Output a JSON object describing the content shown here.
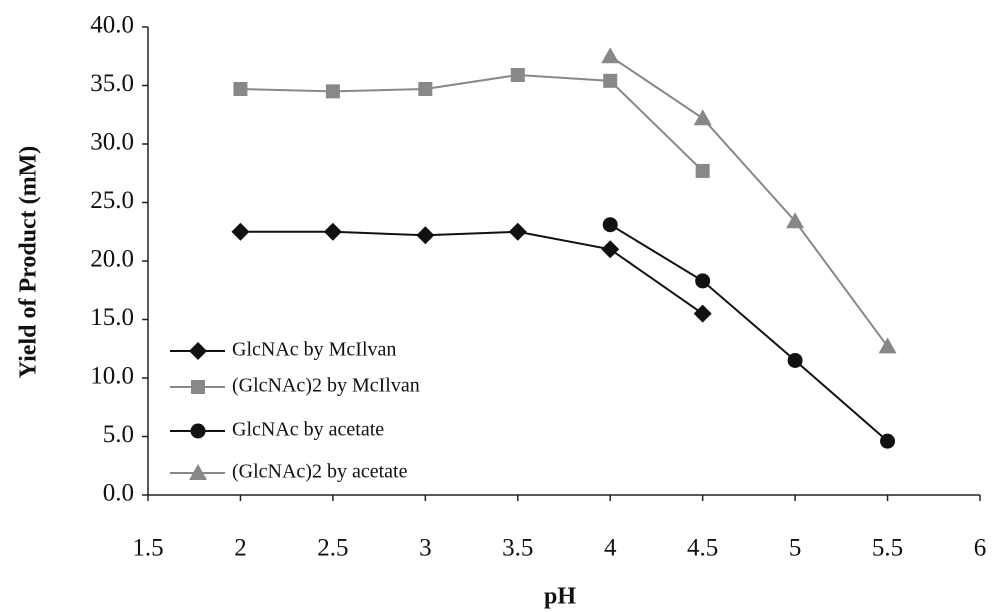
{
  "chart_data": {
    "type": "line",
    "x_label": "pH",
    "y_label": "Yield of Product (mM)",
    "xlim": [
      1.5,
      6
    ],
    "xticks": [
      1.5,
      2,
      2.5,
      3,
      3.5,
      4,
      4.5,
      5,
      5.5,
      6
    ],
    "ylim": [
      0,
      40
    ],
    "yticks": [
      {
        "value": 0,
        "label": "0.0"
      },
      {
        "value": 5,
        "label": "5.0"
      },
      {
        "value": 10,
        "label": "10.0"
      },
      {
        "value": 15,
        "label": "15.0"
      },
      {
        "value": 20,
        "label": "20.0"
      },
      {
        "value": 25,
        "label": "25.0"
      },
      {
        "value": 30,
        "label": "30.0"
      },
      {
        "value": 35,
        "label": "35.0"
      },
      {
        "value": 40,
        "label": "40.0"
      }
    ],
    "grid": false,
    "legend": "lower left",
    "series": [
      {
        "name": "GlcNAc by McIlvan",
        "color": "#111111",
        "marker": "diamond",
        "x": [
          2,
          2.5,
          3,
          3.5,
          4,
          4.5
        ],
        "values": [
          22.5,
          22.5,
          22.2,
          22.5,
          21.0,
          15.5
        ]
      },
      {
        "name": "(GlcNAc)2 by McIlvan",
        "color": "#888888",
        "marker": "square",
        "x": [
          2,
          2.5,
          3,
          3.5,
          4,
          4.5
        ],
        "values": [
          34.7,
          34.5,
          34.7,
          35.9,
          35.4,
          27.7
        ]
      },
      {
        "name": "GlcNAc by acetate",
        "color": "#111111",
        "marker": "circle",
        "x": [
          4,
          4.5,
          5,
          5.5
        ],
        "values": [
          23.1,
          18.3,
          11.5,
          4.6
        ]
      },
      {
        "name": "(GlcNAc)2 by acetate",
        "color": "#888888",
        "marker": "triangle",
        "x": [
          4,
          4.5,
          5,
          5.5
        ],
        "values": [
          37.5,
          32.2,
          23.4,
          12.7
        ]
      }
    ]
  }
}
